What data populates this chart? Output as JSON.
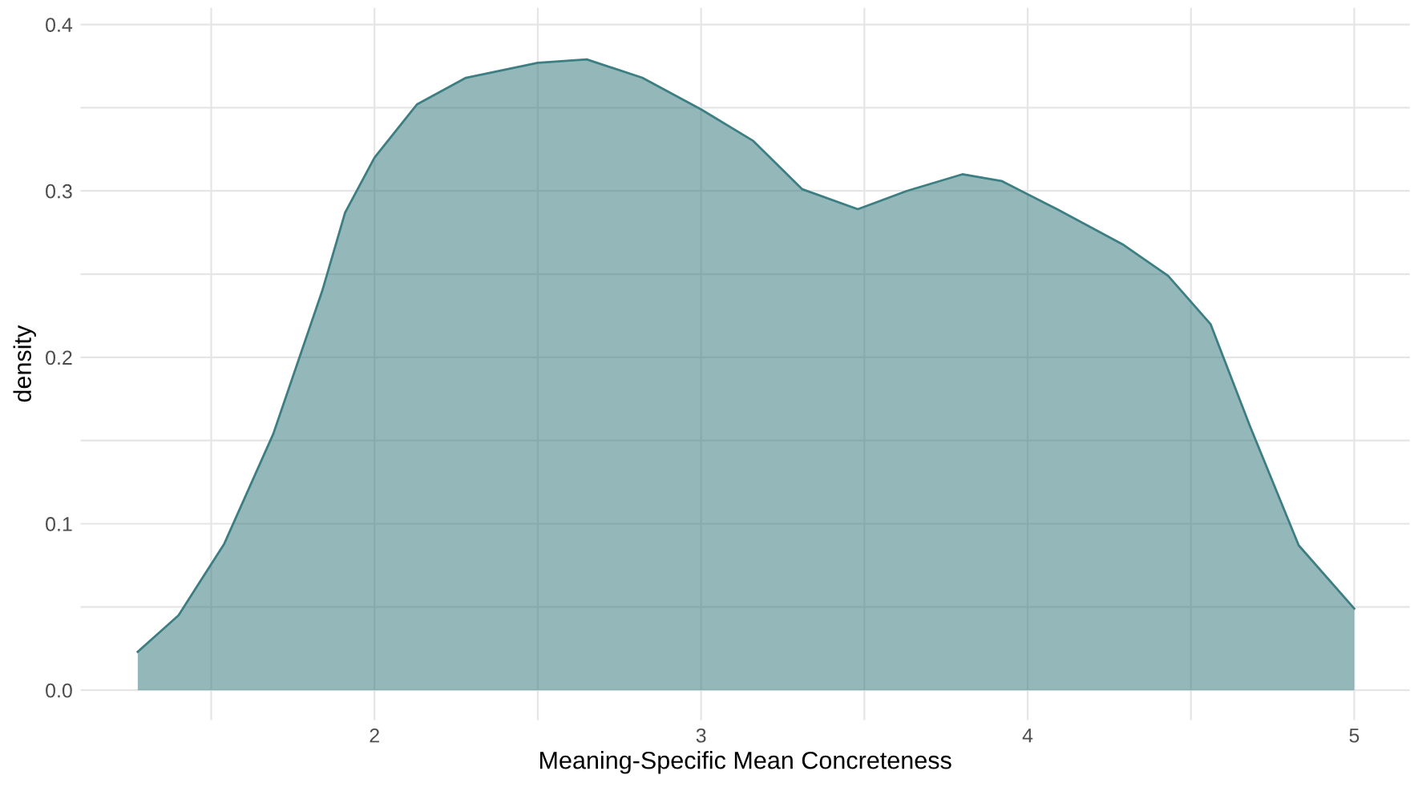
{
  "chart_data": {
    "type": "area",
    "xlabel": "Meaning-Specific Mean Concreteness",
    "ylabel": "density",
    "x": [
      1.275,
      1.4,
      1.54,
      1.69,
      1.84,
      1.91,
      2.0,
      2.13,
      2.28,
      2.5,
      2.65,
      2.82,
      3.0,
      3.16,
      3.31,
      3.48,
      3.63,
      3.8,
      3.92,
      4.09,
      4.29,
      4.43,
      4.56,
      4.68,
      4.83,
      5.0
    ],
    "series": [
      {
        "color": "#3d7e82",
        "values": [
          0.023,
          0.045,
          0.088,
          0.154,
          0.24,
          0.287,
          0.32,
          0.352,
          0.368,
          0.377,
          0.379,
          0.368,
          0.349,
          0.33,
          0.301,
          0.289,
          0.3,
          0.31,
          0.306,
          0.289,
          0.268,
          0.249,
          0.22,
          0.159,
          0.087,
          0.049
        ]
      }
    ],
    "xlim": [
      1.1,
      5.17
    ],
    "ylim": [
      -0.018,
      0.41
    ],
    "xticks": [
      {
        "value": 1.5,
        "label": null
      },
      2,
      {
        "value": 2.5,
        "label": null
      },
      3,
      {
        "value": 3.5,
        "label": null
      },
      4,
      {
        "value": 4.5,
        "label": null
      },
      5
    ],
    "yticks": [
      {
        "value": 0,
        "label": "0.0"
      },
      {
        "value": 0.05,
        "label": null
      },
      0.1,
      {
        "value": 0.15,
        "label": null
      },
      0.2,
      {
        "value": 0.25,
        "label": null
      },
      0.3,
      {
        "value": 0.35,
        "label": null
      },
      0.4
    ],
    "grid": true
  }
}
